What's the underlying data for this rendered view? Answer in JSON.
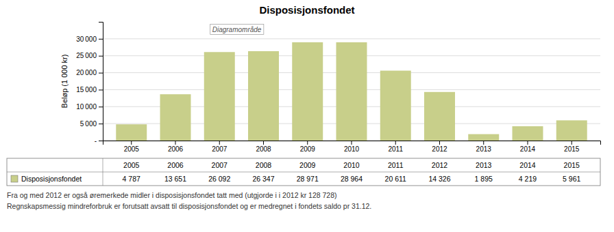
{
  "chart_data": {
    "type": "bar",
    "title": "Disposisjonsfondet",
    "y_label": "Beløp (1 000 kr)",
    "categories": [
      "2005",
      "2006",
      "2007",
      "2008",
      "2009",
      "2010",
      "2011",
      "2012",
      "2013",
      "2014",
      "2015"
    ],
    "series": [
      {
        "name": "Disposisjonsfondet",
        "color": "#c8cf8a",
        "values": [
          4787,
          13651,
          26092,
          26347,
          28971,
          28964,
          20611,
          14326,
          1895,
          4219,
          5961
        ],
        "value_labels": [
          "4 787",
          "13 651",
          "26 092",
          "26 347",
          "28 971",
          "28 964",
          "20 611",
          "14 326",
          "1 895",
          "4 219",
          "5 961"
        ]
      }
    ],
    "ylim": [
      0,
      35000
    ],
    "yticks": [
      {
        "value": 0,
        "label": "-"
      },
      {
        "value": 5000,
        "label": "5 000"
      },
      {
        "value": 10000,
        "label": "10 000"
      },
      {
        "value": 15000,
        "label": "15 000"
      },
      {
        "value": 20000,
        "label": "20 000"
      },
      {
        "value": 25000,
        "label": "25 000"
      },
      {
        "value": 30000,
        "label": "30 000"
      }
    ],
    "grid": true,
    "annotations": [
      "Diagramområde"
    ],
    "footnotes": [
      "Fra og med 2012 er også øremerkede midler i disposisjonsfondet tatt med (utgjorde i i 2012 kr 128 728)",
      "Regnskapsmessig mindreforbruk er forutsatt avsatt til disposisjonsfondet og er medregnet i fondets saldo pr 31.12."
    ]
  }
}
